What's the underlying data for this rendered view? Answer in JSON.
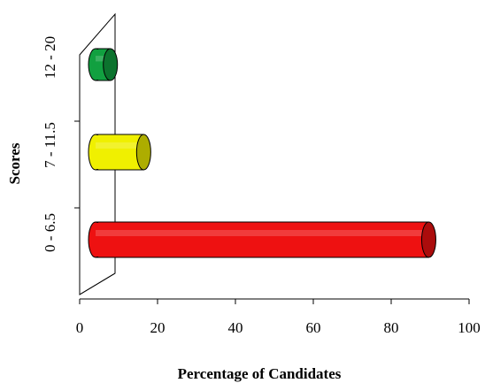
{
  "chart_data": {
    "type": "bar",
    "orientation": "horizontal",
    "style": "3d-cylinder",
    "categories": [
      "0 - 6.5",
      "7 - 11.5",
      "12 - 20"
    ],
    "values": [
      93,
      13,
      4
    ],
    "xlabel": "Percentage of Candidates",
    "ylabel": "Scores",
    "xlim": [
      0,
      100
    ],
    "xticks": [
      "0",
      "20",
      "40",
      "60",
      "80",
      "100"
    ],
    "grid": false,
    "legend": "none",
    "colors": [
      "#ee1111",
      "#f0f000",
      "#11a040"
    ]
  }
}
